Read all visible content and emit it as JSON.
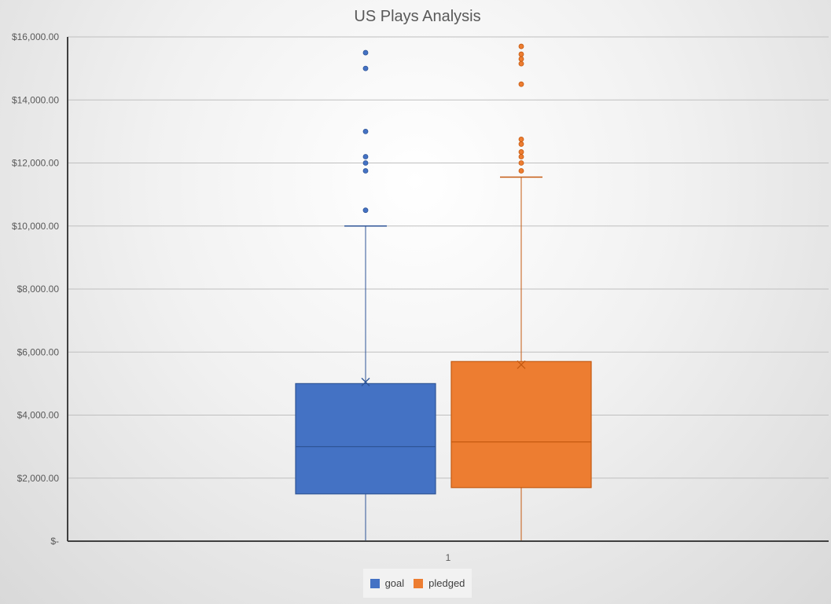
{
  "chart_data": {
    "type": "boxplot",
    "title": "US Plays Analysis",
    "xlabel": "",
    "ylabel": "",
    "categories": [
      "1"
    ],
    "ylim": [
      0,
      16000
    ],
    "yticks": [
      0,
      2000,
      4000,
      6000,
      8000,
      10000,
      12000,
      14000,
      16000
    ],
    "ytick_labels": [
      "$-",
      "$2,000.00",
      "$4,000.00",
      "$6,000.00",
      "$8,000.00",
      "$10,000.00",
      "$12,000.00",
      "$14,000.00",
      "$16,000.00"
    ],
    "grid": true,
    "legend_position": "bottom",
    "series": [
      {
        "name": "goal",
        "color": "#4472C4",
        "min": 0,
        "q1": 1500,
        "median": 3000,
        "q3": 5000,
        "max": 10000,
        "mean": 5050,
        "outliers": [
          10500,
          11750,
          12000,
          12200,
          13000,
          15000,
          15500
        ]
      },
      {
        "name": "pledged",
        "color": "#ED7D31",
        "min": 0,
        "q1": 1700,
        "median": 3150,
        "q3": 5700,
        "max": 11550,
        "mean": 5600,
        "outliers": [
          11750,
          12000,
          12200,
          12350,
          12600,
          12750,
          14500,
          15150,
          15300,
          15450,
          15700
        ]
      }
    ]
  }
}
